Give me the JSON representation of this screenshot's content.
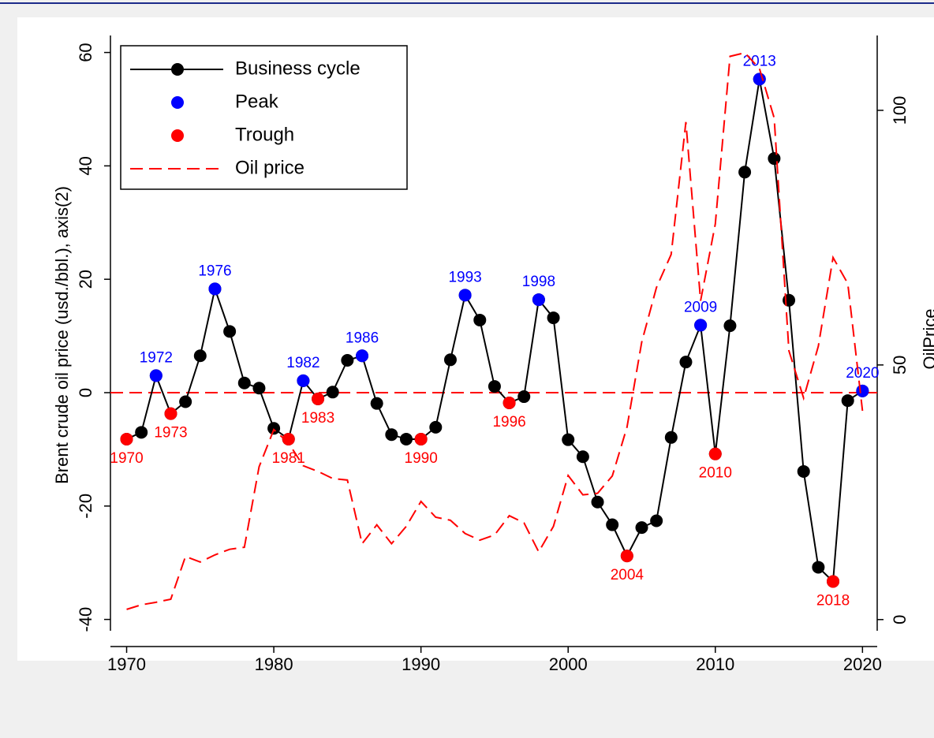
{
  "chart_data": {
    "type": "line",
    "y_label": "Brent crude oil price (usd./bbl.), axis(2)",
    "y2_label": "OilPrice",
    "x": [
      1970,
      1971,
      1972,
      1973,
      1974,
      1975,
      1976,
      1977,
      1978,
      1979,
      1980,
      1981,
      1982,
      1983,
      1984,
      1985,
      1986,
      1987,
      1988,
      1989,
      1990,
      1991,
      1992,
      1993,
      1994,
      1995,
      1996,
      1997,
      1998,
      1999,
      2000,
      2001,
      2002,
      2003,
      2004,
      2005,
      2006,
      2007,
      2008,
      2009,
      2010,
      2011,
      2012,
      2013,
      2014,
      2015,
      2016,
      2017,
      2018,
      2019,
      2020
    ],
    "series": [
      {
        "name": "Business cycle",
        "color": "#000000",
        "style": "line-marker",
        "values": [
          -8.2,
          -7,
          3,
          -3.7,
          -1.6,
          6.5,
          18.3,
          10.8,
          1.7,
          0.8,
          -6.3,
          -8.2,
          2.1,
          -1.1,
          0.1,
          5.7,
          6.5,
          -1.9,
          -7.4,
          -8.2,
          -8.2,
          -6.1,
          5.8,
          17.2,
          12.8,
          1.1,
          -1.8,
          -0.7,
          16.4,
          13.2,
          -8.3,
          -11.3,
          -19.3,
          -23.3,
          -28.8,
          -23.8,
          -22.6,
          -7.9,
          5.4,
          11.9,
          -10.8,
          11.8,
          38.9,
          55.3,
          41.3,
          16.3,
          -13.9,
          -30.8,
          -33.3,
          -1.4,
          0.3
        ]
      },
      {
        "name": "Peak",
        "color": "#0000ff",
        "style": "marker",
        "label_side": "above",
        "x": [
          1972,
          1976,
          1982,
          1986,
          1993,
          1998,
          2009,
          2013,
          2020
        ],
        "values": [
          3,
          18.3,
          2.1,
          6.5,
          17.2,
          16.4,
          11.9,
          55.3,
          0.3
        ]
      },
      {
        "name": "Trough",
        "color": "#ff0000",
        "style": "marker",
        "label_side": "below",
        "x": [
          1970,
          1973,
          1981,
          1983,
          1990,
          1996,
          2004,
          2010,
          2018
        ],
        "values": [
          -8.2,
          -3.7,
          -8.2,
          -1.1,
          -8.2,
          -1.8,
          -28.8,
          -10.8,
          -33.3
        ]
      },
      {
        "name": "Oil price",
        "color": "#ff0000",
        "style": "dashed",
        "axis": "y2",
        "values": [
          2.0,
          2.9,
          3.4,
          4.0,
          12.4,
          11.3,
          12.7,
          13.8,
          14.2,
          30.0,
          37.3,
          34.7,
          30.2,
          29.1,
          27.7,
          27.4,
          14.9,
          18.6,
          14.9,
          18.3,
          23.2,
          20.1,
          19.5,
          16.9,
          15.6,
          16.6,
          20.4,
          19.0,
          13.3,
          18.3,
          28.3,
          24.5,
          24.8,
          28.2,
          37.8,
          54.5,
          65.2,
          71.7,
          97.7,
          62.6,
          77.7,
          110.6,
          111.3,
          108.2,
          98.5,
          52.8,
          43.5,
          53.7,
          71.1,
          66.0,
          41.0
        ]
      }
    ],
    "reference_line": {
      "value": 0,
      "color": "#ff0000"
    },
    "xlim": [
      1968.9,
      2021
    ],
    "xticks": [
      1970,
      1980,
      1990,
      2000,
      2010,
      2020
    ],
    "ylim": [
      -42,
      63
    ],
    "yticks": [
      -40,
      -20,
      0,
      20,
      40,
      60
    ],
    "y2lim": [
      -2.2,
      114.7
    ],
    "y2ticks": [
      0,
      50,
      100
    ],
    "legend": "top-left"
  }
}
